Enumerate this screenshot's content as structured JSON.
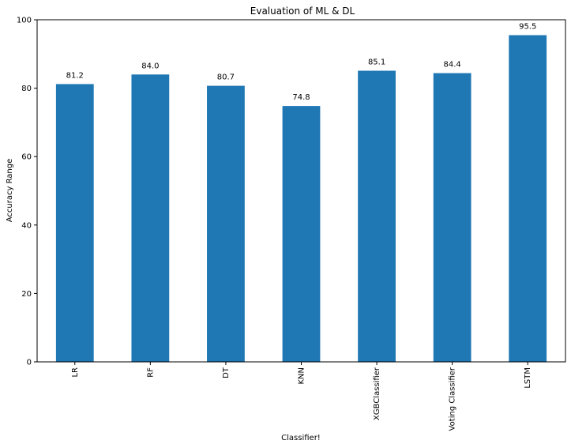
{
  "chart_data": {
    "type": "bar",
    "title": "Evaluation of ML & DL",
    "xlabel": "Classifier!",
    "ylabel": "Accuracy Range",
    "categories": [
      "LR",
      "RF",
      "DT",
      "KNN",
      "XGBClassifier",
      "Voting Classifier",
      "LSTM"
    ],
    "values": [
      81.2,
      84.0,
      80.7,
      74.8,
      85.1,
      84.4,
      95.5
    ],
    "value_labels": [
      "81.2",
      "84.0",
      "80.7",
      "74.8",
      "85.1",
      "84.4",
      "95.5"
    ],
    "ylim": [
      0,
      100
    ],
    "yticks": [
      0,
      20,
      40,
      60,
      80,
      100
    ],
    "grid": false,
    "legend": "none",
    "bar_color": "#1f77b4",
    "x_tick_rotation": "vertical"
  }
}
